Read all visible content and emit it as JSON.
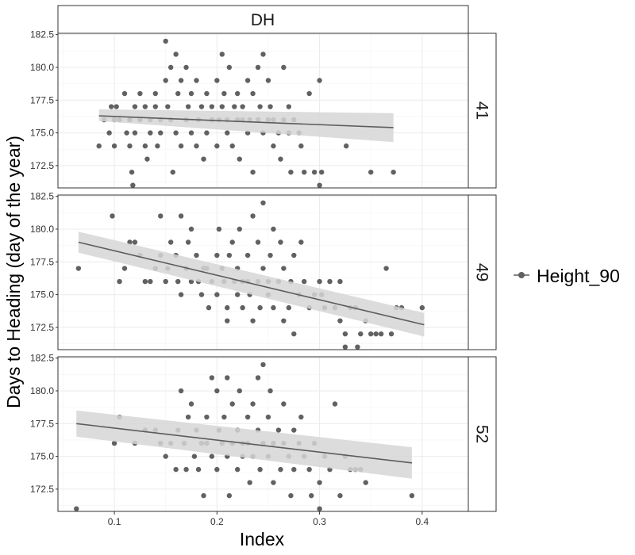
{
  "chart_data": {
    "type": "scatter",
    "title": "",
    "facet_top_label": "DH",
    "xlabel": "Index",
    "ylabel": "Days to Heading (day of the year)",
    "xlim": [
      0.045,
      0.445
    ],
    "ylim": [
      170.8,
      182.6
    ],
    "x_ticks": [
      0.1,
      0.2,
      0.3,
      0.4
    ],
    "x_tick_labels": [
      "0.1",
      "0.2",
      "0.3",
      "0.4"
    ],
    "y_ticks": [
      172.5,
      175.0,
      177.5,
      180.0,
      182.5
    ],
    "y_tick_labels": [
      "172.5",
      "175.0",
      "177.5",
      "180.0",
      "182.5"
    ],
    "grid": true,
    "legend": {
      "position": "right",
      "entries": [
        "Height_90"
      ]
    },
    "colors": {
      "points": "#616161",
      "line": "#5c5c5c",
      "ribbon": "#d6d6d6",
      "grid": "#ebebeb",
      "border": "#333333"
    },
    "panels": [
      {
        "label": "41",
        "fit": {
          "x": [
            0.085,
            0.372
          ],
          "y": [
            176.3,
            175.4
          ],
          "ribbon_lower": [
            175.9,
            174.3
          ],
          "ribbon_upper": [
            176.8,
            176.5
          ]
        },
        "points": [
          [
            0.085,
            174.0
          ],
          [
            0.09,
            176.0
          ],
          [
            0.095,
            175.0
          ],
          [
            0.097,
            177.0
          ],
          [
            0.1,
            176.0
          ],
          [
            0.1,
            174.0
          ],
          [
            0.102,
            177.0
          ],
          [
            0.105,
            176.0
          ],
          [
            0.11,
            178.0
          ],
          [
            0.112,
            175.0
          ],
          [
            0.115,
            176.0
          ],
          [
            0.115,
            174.0
          ],
          [
            0.117,
            172.0
          ],
          [
            0.118,
            171.0
          ],
          [
            0.12,
            177.0
          ],
          [
            0.12,
            175.0
          ],
          [
            0.125,
            178.0
          ],
          [
            0.125,
            176.0
          ],
          [
            0.13,
            177.0
          ],
          [
            0.13,
            174.0
          ],
          [
            0.132,
            173.0
          ],
          [
            0.135,
            175.0
          ],
          [
            0.135,
            176.0
          ],
          [
            0.14,
            177.0
          ],
          [
            0.14,
            178.0
          ],
          [
            0.142,
            174.0
          ],
          [
            0.145,
            176.0
          ],
          [
            0.145,
            175.0
          ],
          [
            0.15,
            182.0
          ],
          [
            0.15,
            179.0
          ],
          [
            0.152,
            177.0
          ],
          [
            0.155,
            180.0
          ],
          [
            0.155,
            176.0
          ],
          [
            0.157,
            172.0
          ],
          [
            0.16,
            181.0
          ],
          [
            0.16,
            175.0
          ],
          [
            0.162,
            178.0
          ],
          [
            0.165,
            179.0
          ],
          [
            0.165,
            174.0
          ],
          [
            0.17,
            176.0
          ],
          [
            0.17,
            180.0
          ],
          [
            0.172,
            177.0
          ],
          [
            0.175,
            175.0
          ],
          [
            0.175,
            178.0
          ],
          [
            0.18,
            179.0
          ],
          [
            0.18,
            174.0
          ],
          [
            0.182,
            176.0
          ],
          [
            0.185,
            177.0
          ],
          [
            0.187,
            173.0
          ],
          [
            0.19,
            178.0
          ],
          [
            0.19,
            175.0
          ],
          [
            0.195,
            176.0
          ],
          [
            0.195,
            177.0
          ],
          [
            0.2,
            179.0
          ],
          [
            0.2,
            174.0
          ],
          [
            0.202,
            176.0
          ],
          [
            0.205,
            181.0
          ],
          [
            0.205,
            177.0
          ],
          [
            0.207,
            178.0
          ],
          [
            0.21,
            175.0
          ],
          [
            0.21,
            176.0
          ],
          [
            0.212,
            180.0
          ],
          [
            0.215,
            174.0
          ],
          [
            0.217,
            177.0
          ],
          [
            0.22,
            176.0
          ],
          [
            0.22,
            178.0
          ],
          [
            0.222,
            173.0
          ],
          [
            0.225,
            176.0
          ],
          [
            0.225,
            177.0
          ],
          [
            0.23,
            175.0
          ],
          [
            0.23,
            179.0
          ],
          [
            0.232,
            176.0
          ],
          [
            0.235,
            172.0
          ],
          [
            0.235,
            178.0
          ],
          [
            0.24,
            176.0
          ],
          [
            0.24,
            180.0
          ],
          [
            0.242,
            177.0
          ],
          [
            0.245,
            175.0
          ],
          [
            0.245,
            181.0
          ],
          [
            0.25,
            176.0
          ],
          [
            0.25,
            179.0
          ],
          [
            0.252,
            177.0
          ],
          [
            0.255,
            174.0
          ],
          [
            0.255,
            176.0
          ],
          [
            0.26,
            175.0
          ],
          [
            0.262,
            173.0
          ],
          [
            0.265,
            176.0
          ],
          [
            0.265,
            180.0
          ],
          [
            0.27,
            175.0
          ],
          [
            0.27,
            177.0
          ],
          [
            0.272,
            172.0
          ],
          [
            0.275,
            176.0
          ],
          [
            0.28,
            175.0
          ],
          [
            0.282,
            174.0
          ],
          [
            0.285,
            172.0
          ],
          [
            0.29,
            178.0
          ],
          [
            0.295,
            172.0
          ],
          [
            0.3,
            179.0
          ],
          [
            0.3,
            171.0
          ],
          [
            0.302,
            172.0
          ],
          [
            0.326,
            174.0
          ],
          [
            0.35,
            172.0
          ],
          [
            0.372,
            172.0
          ]
        ]
      },
      {
        "label": "49",
        "fit": {
          "x": [
            0.065,
            0.402
          ],
          "y": [
            179.0,
            172.7
          ],
          "ribbon_lower": [
            178.2,
            171.8
          ],
          "ribbon_upper": [
            179.8,
            173.6
          ]
        },
        "points": [
          [
            0.065,
            177.0
          ],
          [
            0.098,
            181.0
          ],
          [
            0.105,
            176.0
          ],
          [
            0.11,
            177.0
          ],
          [
            0.115,
            179.0
          ],
          [
            0.12,
            179.0
          ],
          [
            0.125,
            178.0
          ],
          [
            0.13,
            176.0
          ],
          [
            0.135,
            176.0
          ],
          [
            0.14,
            177.0
          ],
          [
            0.145,
            181.0
          ],
          [
            0.145,
            178.0
          ],
          [
            0.15,
            176.0
          ],
          [
            0.152,
            177.0
          ],
          [
            0.155,
            179.0
          ],
          [
            0.16,
            178.0
          ],
          [
            0.162,
            176.0
          ],
          [
            0.165,
            181.0
          ],
          [
            0.165,
            175.0
          ],
          [
            0.17,
            177.0
          ],
          [
            0.172,
            179.0
          ],
          [
            0.175,
            176.0
          ],
          [
            0.175,
            180.0
          ],
          [
            0.18,
            178.0
          ],
          [
            0.182,
            176.0
          ],
          [
            0.185,
            175.0
          ],
          [
            0.187,
            177.0
          ],
          [
            0.19,
            177.0
          ],
          [
            0.192,
            174.0
          ],
          [
            0.195,
            176.0
          ],
          [
            0.2,
            178.0
          ],
          [
            0.2,
            175.0
          ],
          [
            0.202,
            180.0
          ],
          [
            0.205,
            177.0
          ],
          [
            0.207,
            176.0
          ],
          [
            0.21,
            174.0
          ],
          [
            0.21,
            173.0
          ],
          [
            0.212,
            178.0
          ],
          [
            0.215,
            179.0
          ],
          [
            0.217,
            176.0
          ],
          [
            0.22,
            177.0
          ],
          [
            0.22,
            175.0
          ],
          [
            0.222,
            180.0
          ],
          [
            0.225,
            176.0
          ],
          [
            0.225,
            174.0
          ],
          [
            0.23,
            178.0
          ],
          [
            0.23,
            176.0
          ],
          [
            0.232,
            175.0
          ],
          [
            0.235,
            181.0
          ],
          [
            0.235,
            173.0
          ],
          [
            0.24,
            176.0
          ],
          [
            0.24,
            179.0
          ],
          [
            0.242,
            174.0
          ],
          [
            0.245,
            182.0
          ],
          [
            0.245,
            177.0
          ],
          [
            0.25,
            176.0
          ],
          [
            0.25,
            175.0
          ],
          [
            0.252,
            178.0
          ],
          [
            0.255,
            174.0
          ],
          [
            0.255,
            180.0
          ],
          [
            0.26,
            176.0
          ],
          [
            0.262,
            179.0
          ],
          [
            0.265,
            173.0
          ],
          [
            0.265,
            177.0
          ],
          [
            0.27,
            174.0
          ],
          [
            0.272,
            176.0
          ],
          [
            0.275,
            172.0
          ],
          [
            0.275,
            178.0
          ],
          [
            0.28,
            175.0
          ],
          [
            0.282,
            179.0
          ],
          [
            0.285,
            176.0
          ],
          [
            0.29,
            174.0
          ],
          [
            0.295,
            175.0
          ],
          [
            0.3,
            176.0
          ],
          [
            0.302,
            175.0
          ],
          [
            0.305,
            174.0
          ],
          [
            0.31,
            176.0
          ],
          [
            0.315,
            174.0
          ],
          [
            0.32,
            173.0
          ],
          [
            0.32,
            176.0
          ],
          [
            0.325,
            172.0
          ],
          [
            0.325,
            171.0
          ],
          [
            0.33,
            174.0
          ],
          [
            0.335,
            174.0
          ],
          [
            0.337,
            171.0
          ],
          [
            0.34,
            172.0
          ],
          [
            0.345,
            173.0
          ],
          [
            0.35,
            172.0
          ],
          [
            0.355,
            172.0
          ],
          [
            0.36,
            172.0
          ],
          [
            0.365,
            177.0
          ],
          [
            0.37,
            172.0
          ],
          [
            0.375,
            174.0
          ],
          [
            0.38,
            174.0
          ],
          [
            0.4,
            174.0
          ]
        ]
      },
      {
        "label": "52",
        "fit": {
          "x": [
            0.063,
            0.39
          ],
          "y": [
            177.5,
            174.5
          ],
          "ribbon_lower": [
            176.5,
            173.3
          ],
          "ribbon_upper": [
            178.5,
            175.7
          ]
        },
        "points": [
          [
            0.063,
            171.0
          ],
          [
            0.1,
            176.0
          ],
          [
            0.105,
            178.0
          ],
          [
            0.12,
            176.0
          ],
          [
            0.13,
            177.0
          ],
          [
            0.14,
            177.0
          ],
          [
            0.145,
            176.0
          ],
          [
            0.15,
            175.0
          ],
          [
            0.155,
            176.0
          ],
          [
            0.16,
            174.0
          ],
          [
            0.162,
            177.0
          ],
          [
            0.165,
            180.0
          ],
          [
            0.168,
            176.0
          ],
          [
            0.17,
            174.0
          ],
          [
            0.172,
            178.0
          ],
          [
            0.175,
            179.0
          ],
          [
            0.178,
            175.0
          ],
          [
            0.18,
            177.0
          ],
          [
            0.182,
            174.0
          ],
          [
            0.185,
            176.0
          ],
          [
            0.187,
            172.0
          ],
          [
            0.19,
            178.0
          ],
          [
            0.19,
            176.0
          ],
          [
            0.195,
            181.0
          ],
          [
            0.195,
            175.0
          ],
          [
            0.2,
            180.0
          ],
          [
            0.2,
            174.0
          ],
          [
            0.202,
            177.0
          ],
          [
            0.205,
            176.0
          ],
          [
            0.207,
            178.0
          ],
          [
            0.21,
            181.0
          ],
          [
            0.21,
            175.0
          ],
          [
            0.212,
            172.0
          ],
          [
            0.215,
            176.0
          ],
          [
            0.215,
            179.0
          ],
          [
            0.22,
            177.0
          ],
          [
            0.22,
            174.0
          ],
          [
            0.222,
            180.0
          ],
          [
            0.225,
            176.0
          ],
          [
            0.225,
            175.0
          ],
          [
            0.23,
            178.0
          ],
          [
            0.23,
            176.0
          ],
          [
            0.232,
            173.0
          ],
          [
            0.235,
            179.0
          ],
          [
            0.235,
            175.0
          ],
          [
            0.24,
            177.0
          ],
          [
            0.24,
            181.0
          ],
          [
            0.242,
            174.0
          ],
          [
            0.245,
            182.0
          ],
          [
            0.245,
            176.0
          ],
          [
            0.25,
            178.0
          ],
          [
            0.25,
            175.0
          ],
          [
            0.252,
            180.0
          ],
          [
            0.255,
            176.0
          ],
          [
            0.255,
            173.0
          ],
          [
            0.26,
            177.0
          ],
          [
            0.262,
            174.0
          ],
          [
            0.265,
            179.0
          ],
          [
            0.265,
            176.0
          ],
          [
            0.27,
            175.0
          ],
          [
            0.272,
            172.0
          ],
          [
            0.275,
            177.0
          ],
          [
            0.275,
            174.0
          ],
          [
            0.28,
            176.0
          ],
          [
            0.282,
            178.0
          ],
          [
            0.285,
            175.0
          ],
          [
            0.29,
            174.0
          ],
          [
            0.292,
            172.0
          ],
          [
            0.295,
            176.0
          ],
          [
            0.3,
            173.0
          ],
          [
            0.3,
            171.0
          ],
          [
            0.305,
            175.0
          ],
          [
            0.31,
            174.0
          ],
          [
            0.315,
            179.0
          ],
          [
            0.32,
            172.0
          ],
          [
            0.325,
            175.0
          ],
          [
            0.33,
            174.0
          ],
          [
            0.335,
            174.0
          ],
          [
            0.34,
            174.0
          ],
          [
            0.345,
            173.0
          ],
          [
            0.39,
            172.0
          ]
        ]
      }
    ]
  }
}
